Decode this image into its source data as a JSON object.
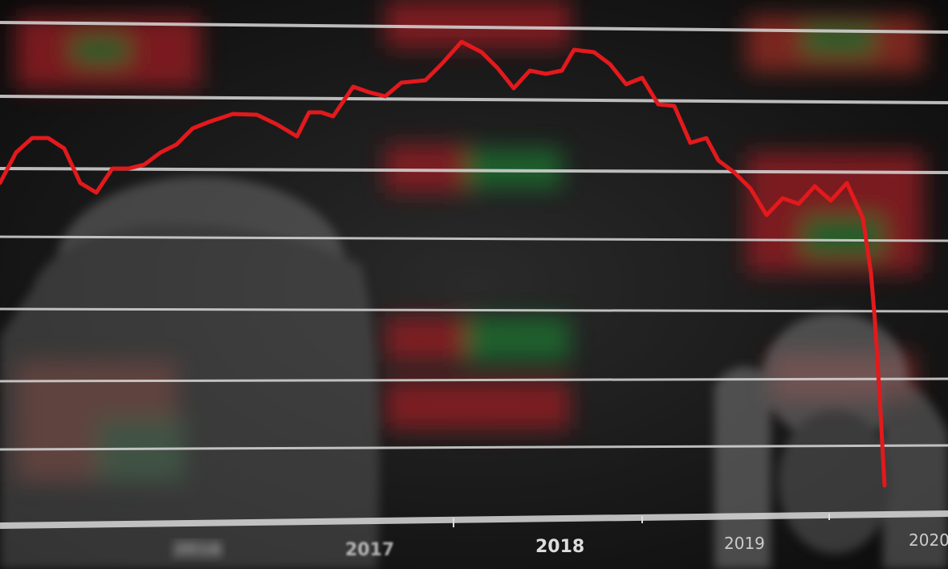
{
  "axis": {
    "year_labels": [
      "2016",
      "2017",
      "2018",
      "2019",
      "2020"
    ]
  },
  "colors": {
    "trend_line": "#e3191c",
    "grid_line": "#d9d9d9",
    "board_red": "#8c1f22",
    "board_green": "#1f6b2e"
  }
}
